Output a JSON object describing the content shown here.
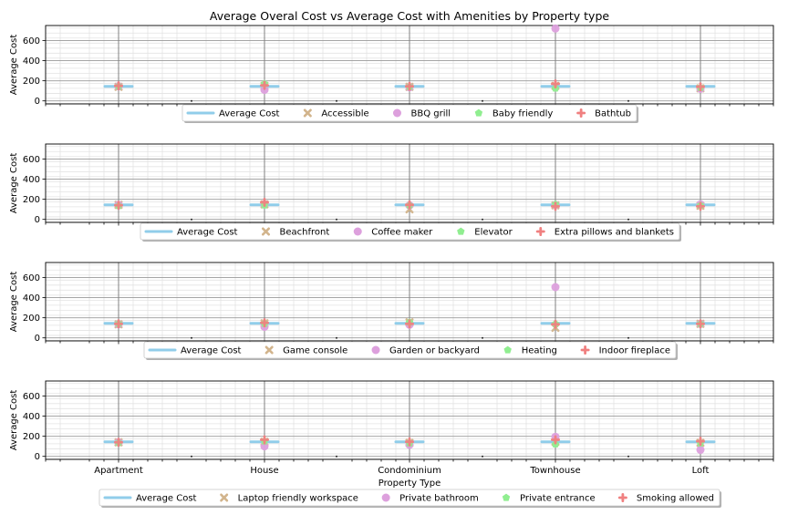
{
  "chart_data": {
    "type": "scatter",
    "title": "Average Overal Cost vs Average Cost with Amenities by Property type",
    "xlabel": "Property Type",
    "categories": [
      "Apartment",
      "House",
      "Condominium",
      "Townhouse",
      "Loft"
    ],
    "ylim": [
      -30,
      750
    ],
    "yticks": [
      "0",
      "200",
      "400",
      "600"
    ],
    "grid": true,
    "legend_position": "below each panel",
    "colors": {
      "average": "#90cdea",
      "m1": "#d2b48c",
      "m2": "#dda0dd",
      "m3": "#90ee90",
      "m4": "#f08080"
    },
    "panels": [
      {
        "ylabel": "Average Cost",
        "series": [
          {
            "name": "Average Cost",
            "values": [
              145,
              145,
              145,
              145,
              145
            ]
          },
          {
            "name": "Accessible",
            "values": [
              140,
              150,
              140,
              150,
              125
            ]
          },
          {
            "name": "BBQ grill",
            "values": [
              145,
              110,
              135,
              720,
              120
            ]
          },
          {
            "name": "Baby friendly",
            "values": [
              145,
              170,
              140,
              125,
              130
            ]
          },
          {
            "name": "Bathtub",
            "values": [
              150,
              155,
              145,
              170,
              140
            ]
          }
        ]
      },
      {
        "ylabel": "Average Cost",
        "series": [
          {
            "name": "Average Cost",
            "values": [
              145,
              145,
              145,
              145,
              145
            ]
          },
          {
            "name": "Beachfront",
            "values": [
              145,
              150,
              100,
              140,
              135
            ]
          },
          {
            "name": "Coffee maker",
            "values": [
              145,
              150,
              140,
              145,
              150
            ]
          },
          {
            "name": "Elevator",
            "values": [
              135,
              140,
              140,
              150,
              140
            ]
          },
          {
            "name": "Extra pillows and blankets",
            "values": [
              140,
              170,
              145,
              130,
              130
            ]
          }
        ]
      },
      {
        "ylabel": "Average Cost",
        "series": [
          {
            "name": "Average Cost",
            "values": [
              145,
              145,
              145,
              145,
              145
            ]
          },
          {
            "name": "Game console",
            "values": [
              135,
              145,
              155,
              100,
              140
            ]
          },
          {
            "name": "Garden or backyard",
            "values": [
              135,
              110,
              130,
              505,
              140
            ]
          },
          {
            "name": "Heating",
            "values": [
              140,
              140,
              155,
              140,
              140
            ]
          },
          {
            "name": "Indoor fireplace",
            "values": [
              140,
              150,
              140,
              135,
              140
            ]
          }
        ]
      },
      {
        "ylabel": "Average Cost",
        "series": [
          {
            "name": "Average Cost",
            "values": [
              145,
              145,
              145,
              145,
              145
            ]
          },
          {
            "name": "Laptop friendly workspace",
            "values": [
              140,
              145,
              135,
              145,
              135
            ]
          },
          {
            "name": "Private bathroom",
            "values": [
              140,
              100,
              115,
              195,
              65
            ]
          },
          {
            "name": "Private entrance",
            "values": [
              135,
              150,
              130,
              120,
              130
            ]
          },
          {
            "name": "Smoking allowed",
            "values": [
              140,
              165,
              145,
              165,
              150
            ]
          }
        ]
      }
    ]
  }
}
